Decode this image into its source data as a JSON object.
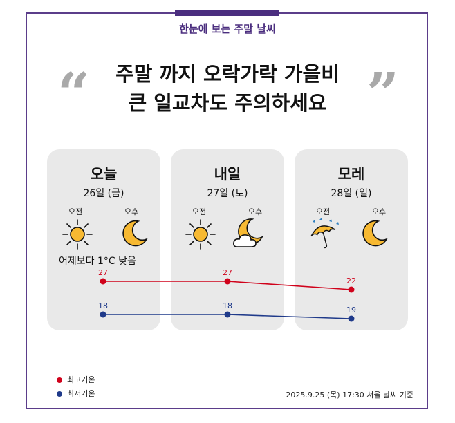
{
  "header": {
    "subtitle": "한눈에 보는 주말 날씨"
  },
  "headline": {
    "line1": "주말 까지 오락가락 가을비",
    "line2": "큰 일교차도 주의하세요"
  },
  "days": [
    {
      "name": "오늘",
      "date": "26일 (금)",
      "am_label": "오전",
      "pm_label": "오후",
      "am_icon": "sun-icon",
      "pm_icon": "moon-icon"
    },
    {
      "name": "내일",
      "date": "27일 (토)",
      "am_label": "오전",
      "pm_label": "오후",
      "am_icon": "sun-icon",
      "pm_icon": "moon-cloud-icon"
    },
    {
      "name": "모레",
      "date": "28일 (일)",
      "am_label": "오전",
      "pm_label": "오후",
      "am_icon": "umbrella-rain-icon",
      "pm_icon": "moon-icon"
    }
  ],
  "note": "어제보다 1°C 낮음",
  "chart_data": {
    "type": "line",
    "categories": [
      "오늘",
      "내일",
      "모레"
    ],
    "series": [
      {
        "name": "최고기온",
        "values": [
          27,
          27,
          22
        ],
        "color": "#d0021b"
      },
      {
        "name": "최저기온",
        "values": [
          18,
          18,
          19
        ],
        "color": "#1f3a8a"
      }
    ]
  },
  "legend": {
    "high": "최고기온",
    "low": "최저기온"
  },
  "footer": "2025.9.25 (목) 17:30 서울 날씨 기준"
}
